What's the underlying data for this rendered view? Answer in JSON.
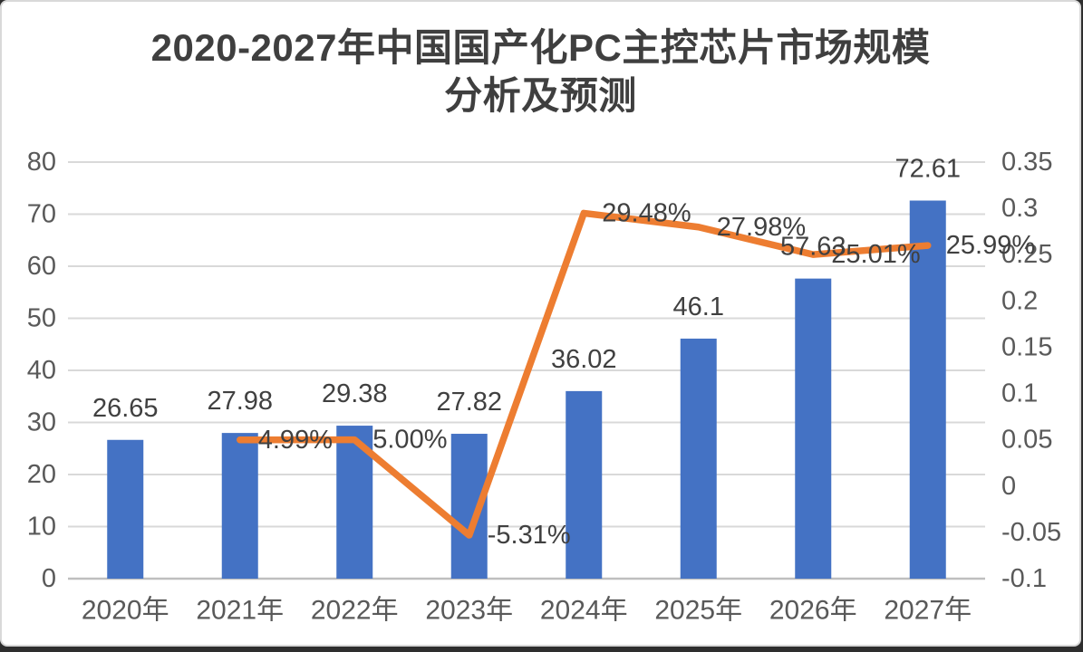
{
  "title": {
    "line1": "2020-2027年中国国产化PC主控芯片市场规模",
    "line2": "分析及预测"
  },
  "colors": {
    "bar": "#4472C4",
    "line": "#ED7D31",
    "grid": "#D9D9D9",
    "baseline": "#BFBFBF",
    "tick_text": "#595959",
    "label_text": "#404040",
    "title_text": "#3F3F3F",
    "card_border": "#D9D9D9"
  },
  "chart_data": {
    "type": "combo",
    "title": "2020-2027年中国国产化PC主控芯片市场规模分析及预测",
    "categories": [
      "2020年",
      "2021年",
      "2022年",
      "2023年",
      "2024年",
      "2025年",
      "2026年",
      "2027年"
    ],
    "series": [
      {
        "id": "market-size-bar",
        "type": "bar",
        "axis": "left",
        "color": "#4472C4",
        "values": [
          26.65,
          27.98,
          29.38,
          27.82,
          36.02,
          46.1,
          57.63,
          72.61
        ],
        "labels": [
          "26.65",
          "27.98",
          "29.38",
          "27.82",
          "36.02",
          "46.1",
          "57.63",
          "72.61"
        ]
      },
      {
        "id": "growth-rate-line",
        "type": "line",
        "axis": "right",
        "color": "#ED7D31",
        "values": [
          null,
          0.0499,
          0.05,
          -0.0531,
          0.2948,
          0.2798,
          0.2501,
          0.2599
        ],
        "labels": [
          "",
          "4.99%",
          "5.00%",
          "-5.31%",
          "29.48%",
          "27.98%",
          "25.01%",
          "25.99%"
        ]
      }
    ],
    "left_axis": {
      "min": 0,
      "max": 80,
      "step": 10,
      "tick_labels": [
        "0",
        "10",
        "20",
        "30",
        "40",
        "50",
        "60",
        "70",
        "80"
      ]
    },
    "right_axis": {
      "min": -0.1,
      "max": 0.35,
      "step": 0.05,
      "tick_labels": [
        "-0.1",
        "-0.05",
        "0",
        "0.05",
        "0.1",
        "0.15",
        "0.2",
        "0.25",
        "0.3",
        "0.35"
      ]
    },
    "grid": true,
    "legend": "none"
  }
}
